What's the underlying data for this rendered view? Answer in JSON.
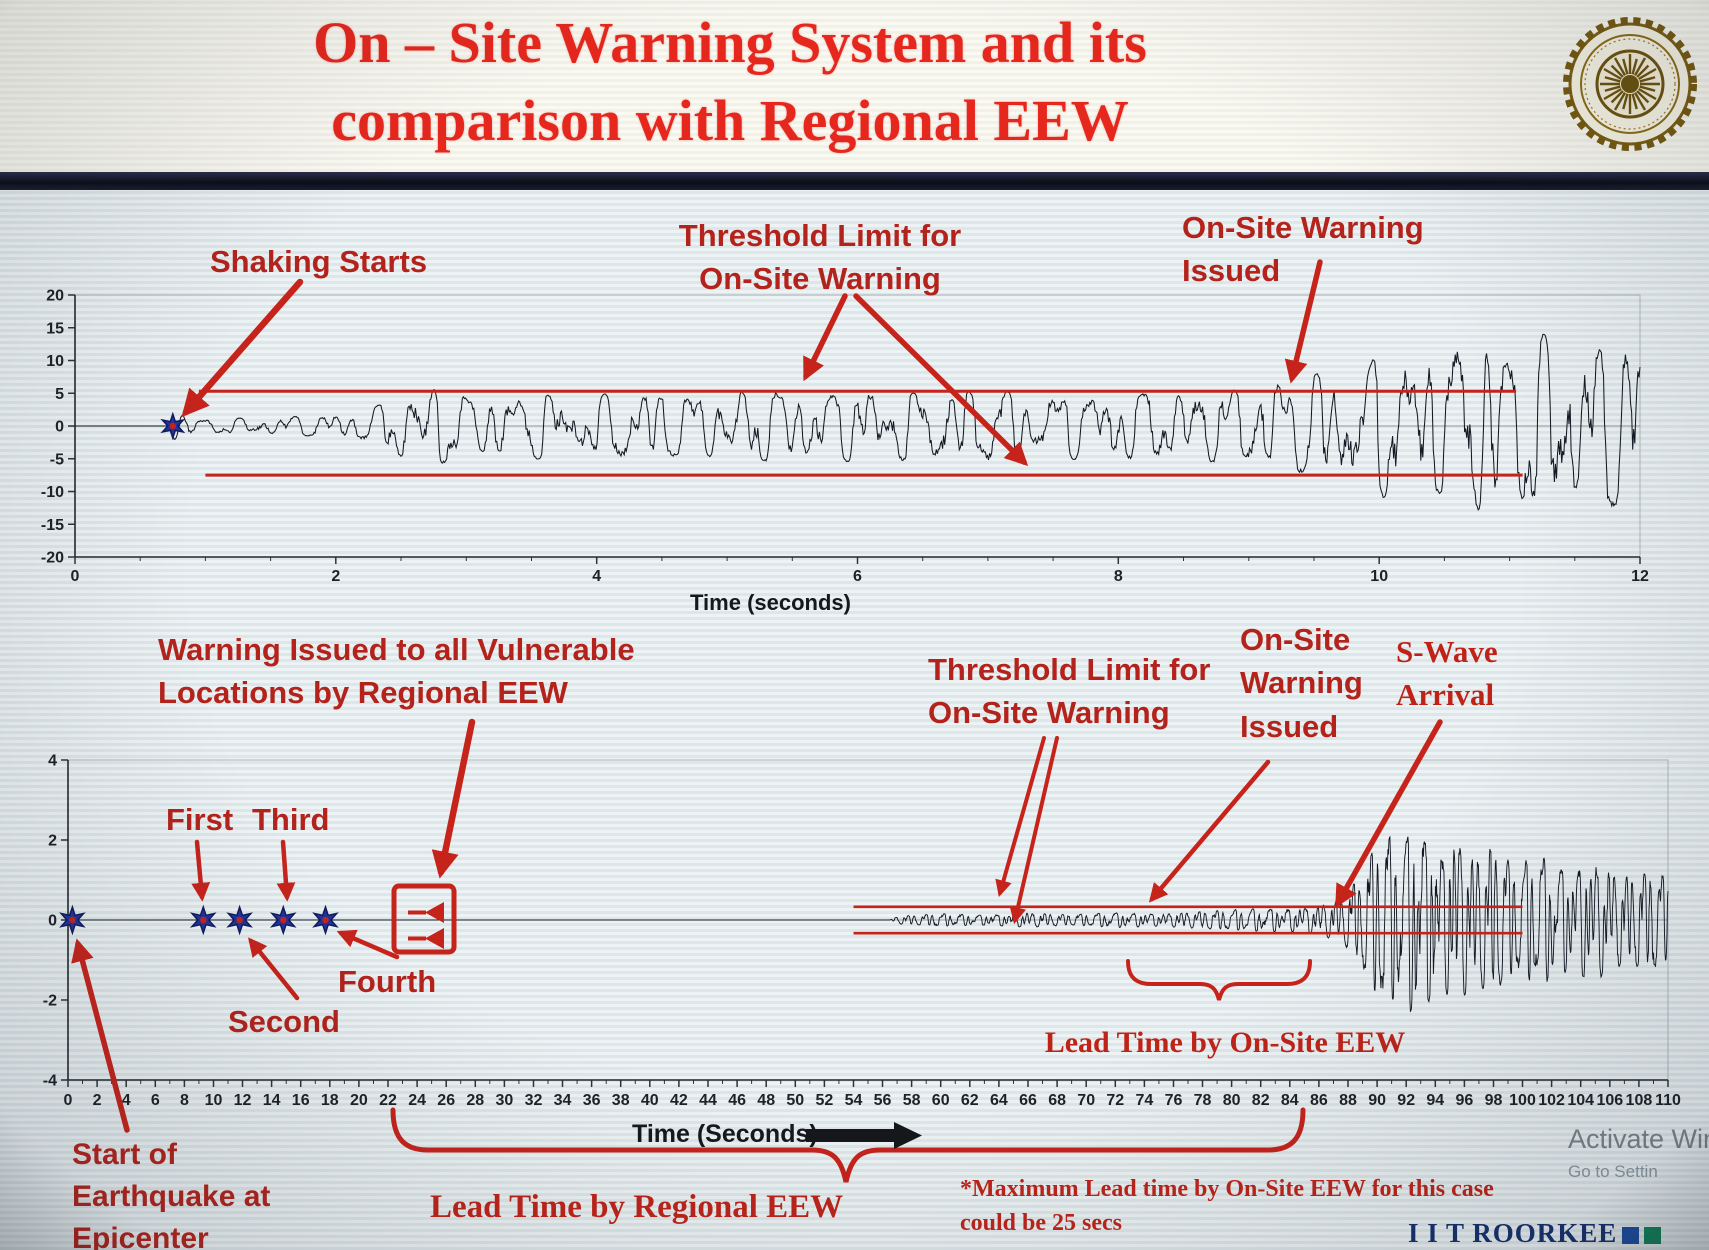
{
  "accent_colors": {
    "red": "#c6231b",
    "title_red": "#e5271d",
    "navy": "#16306e",
    "waveform": "#141a24",
    "star_blue": "#20339c"
  },
  "title": {
    "line1": "On – Site Warning System and its",
    "line2": "comparison with Regional EEW"
  },
  "logo": {
    "name": "IIT Roorkee circular seal"
  },
  "annotations_top": {
    "shaking_starts": "Shaking Starts",
    "threshold_limit": "Threshold Limit for\nOn-Site Warning",
    "warning_issued": "On-Site Warning\nIssued"
  },
  "annotations_bottom": {
    "regional_warning": "Warning Issued to all Vulnerable\nLocations by Regional EEW",
    "first": "First",
    "third": "Third",
    "second": "Second",
    "fourth": "Fourth",
    "epicenter": "Start of\nEarthquake at\nEpicenter",
    "threshold_limit": "Threshold Limit for\nOn-Site Warning",
    "warning_issued": "On-Site\nWarning\nIssued",
    "s_wave": "S-Wave\nArrival",
    "lead_onsite": "Lead Time by On-Site EEW",
    "lead_regional": "Lead Time by Regional EEW",
    "max_lead": "*Maximum Lead time by On-Site EEW for this case\ncould be 25 secs"
  },
  "footer": {
    "brand": "I I T ROORKEE",
    "squares": [
      "#1d4ea3",
      "#14855c"
    ]
  },
  "watermark": {
    "line1": "Activate Win",
    "line2": "Go to Settin"
  },
  "chart_data": [
    {
      "id": "top",
      "type": "line",
      "xlabel": "Time (seconds)",
      "ylabel": "",
      "xlim": [
        0,
        12
      ],
      "ylim": [
        -20,
        20
      ],
      "x_ticks": [
        0,
        2,
        4,
        6,
        8,
        10,
        12
      ],
      "y_ticks": [
        20,
        15,
        10,
        5,
        0,
        -5,
        -10,
        -15,
        -20
      ],
      "x_minor_step": 0.5,
      "grid": false,
      "thresholds": [
        {
          "label": "upper threshold for on-site warning",
          "value": 5.3,
          "t0": 0.95,
          "t1": 11.05
        },
        {
          "label": "lower threshold for on-site warning",
          "value": -7.5,
          "t0": 1.0,
          "t1": 11.1
        }
      ],
      "events": [
        {
          "label": "Shaking Starts",
          "t": 0.75
        },
        {
          "label": "On-Site Warning Issued",
          "t": 9.3
        }
      ],
      "stars": [
        {
          "t": 0.75,
          "v": 0
        }
      ],
      "wave": {
        "seed": 11,
        "n": 1500,
        "freqs": [
          2.9,
          4.6,
          6.8,
          9.3
        ],
        "amps": [
          1,
          0.85,
          0.7,
          0.5
        ],
        "jitter": 0.3,
        "envelope": [
          [
            0,
            0
          ],
          [
            0.72,
            0
          ],
          [
            0.76,
            2.4
          ],
          [
            0.95,
            1.1
          ],
          [
            1.4,
            1.3
          ],
          [
            1.9,
            1.7
          ],
          [
            2.25,
            2.4
          ],
          [
            2.5,
            5.4
          ],
          [
            2.8,
            6.2
          ],
          [
            3.1,
            4.3
          ],
          [
            3.5,
            5.3
          ],
          [
            3.9,
            4.5
          ],
          [
            4.3,
            5.7
          ],
          [
            4.8,
            4.7
          ],
          [
            5.2,
            5.9
          ],
          [
            5.7,
            4.9
          ],
          [
            6.1,
            6.1
          ],
          [
            6.5,
            5.1
          ],
          [
            7,
            5.9
          ],
          [
            7.4,
            4.9
          ],
          [
            7.9,
            5.5
          ],
          [
            8.4,
            5.1
          ],
          [
            8.8,
            5.9
          ],
          [
            9.1,
            6.3
          ],
          [
            9.35,
            7.4
          ],
          [
            9.6,
            8.8
          ],
          [
            9.9,
            9.8
          ],
          [
            10.15,
            12.8
          ],
          [
            10.45,
            10.4
          ],
          [
            10.7,
            14.4
          ],
          [
            11,
            11.8
          ],
          [
            11.3,
            14.8
          ],
          [
            11.6,
            11.4
          ],
          [
            11.85,
            13.8
          ],
          [
            12,
            12.4
          ]
        ]
      }
    },
    {
      "id": "bottom",
      "type": "line",
      "xlabel": "Time (Seconds)",
      "ylabel": "",
      "xlim": [
        0,
        110
      ],
      "ylim": [
        -4,
        4
      ],
      "x_ticks": [
        0,
        2,
        4,
        6,
        8,
        10,
        12,
        14,
        16,
        18,
        20,
        22,
        24,
        26,
        28,
        30,
        32,
        34,
        36,
        38,
        40,
        42,
        44,
        46,
        48,
        50,
        52,
        54,
        56,
        58,
        60,
        62,
        64,
        66,
        68,
        70,
        72,
        74,
        76,
        78,
        80,
        82,
        84,
        86,
        88,
        90,
        92,
        94,
        96,
        98,
        100,
        102,
        104,
        106,
        108,
        110
      ],
      "y_ticks": [
        4,
        2,
        0,
        -2,
        -4
      ],
      "x_minor_step": 1,
      "grid": false,
      "thresholds": [
        {
          "label": "upper threshold for on-site warning",
          "value": 0.33,
          "t0": 54,
          "t1": 100
        },
        {
          "label": "lower threshold for on-site warning",
          "value": -0.33,
          "t0": 54,
          "t1": 100
        }
      ],
      "stars": [
        {
          "t": 0.3,
          "v": 0,
          "label": "Start of Earthquake at Epicenter"
        },
        {
          "t": 9.3,
          "v": 0,
          "label": "First"
        },
        {
          "t": 11.8,
          "v": 0,
          "label": "Second"
        },
        {
          "t": 14.8,
          "v": 0,
          "label": "Third"
        },
        {
          "t": 17.7,
          "v": 0,
          "label": "Fourth"
        }
      ],
      "warning_box": {
        "t0": 22.3,
        "t1": 26.8,
        "v0": -0.85,
        "v1": 0.85
      },
      "events": [
        {
          "label": "On-Site Warning Issued",
          "t": 80
        },
        {
          "label": "S-Wave Arrival",
          "t": 88
        }
      ],
      "lead_times": [
        {
          "label": "Lead Time by On-Site EEW",
          "t0": 73,
          "t1": 85.5
        },
        {
          "label": "Lead Time by Regional EEW",
          "t0": 24,
          "t1": 92
        }
      ],
      "note": "*Maximum Lead time by On-Site EEW for this case could be 25 secs",
      "wave": {
        "seed": 23,
        "n": 3200,
        "freqs": [
          0.85,
          1.6,
          2.45,
          3.2
        ],
        "amps": [
          1,
          0.9,
          0.75,
          0.55
        ],
        "jitter": 0.3,
        "envelope": [
          [
            0,
            0
          ],
          [
            56.5,
            0
          ],
          [
            57,
            0.1
          ],
          [
            60,
            0.17
          ],
          [
            63,
            0.13
          ],
          [
            66,
            0.19
          ],
          [
            69,
            0.14
          ],
          [
            72,
            0.2
          ],
          [
            75,
            0.16
          ],
          [
            78,
            0.23
          ],
          [
            80,
            0.27
          ],
          [
            82,
            0.31
          ],
          [
            84,
            0.29
          ],
          [
            86,
            0.4
          ],
          [
            87.5,
            0.55
          ],
          [
            88.5,
            1.0
          ],
          [
            89.5,
            1.7
          ],
          [
            90.5,
            2.35
          ],
          [
            91.5,
            1.95
          ],
          [
            92.5,
            2.5
          ],
          [
            93.5,
            2.15
          ],
          [
            94.5,
            1.75
          ],
          [
            95.5,
            2.25
          ],
          [
            96.5,
            1.65
          ],
          [
            98,
            1.95
          ],
          [
            99.5,
            1.45
          ],
          [
            101,
            1.75
          ],
          [
            103,
            1.35
          ],
          [
            105,
            1.55
          ],
          [
            107,
            1.15
          ],
          [
            109,
            1.35
          ],
          [
            110,
            1.05
          ]
        ]
      }
    }
  ]
}
